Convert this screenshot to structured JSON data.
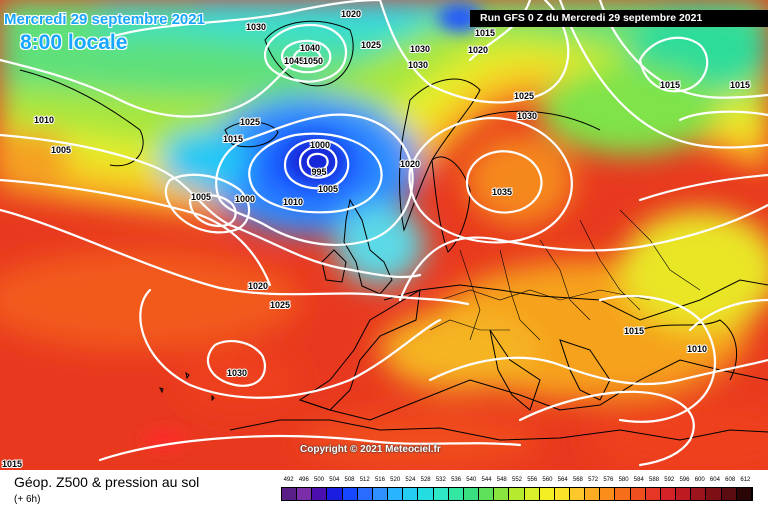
{
  "header": {
    "date": "Mercredi 29 septembre 2021",
    "time": "8:00 locale",
    "run": "Run GFS 0 Z du Mercredi 29 septembre 2021"
  },
  "copyright": "Copyright © 2021 Meteociel.fr",
  "legend": {
    "title": "Géop. Z500 & pression au sol",
    "subtitle": "(+ 6h)",
    "scale_values": [
      "492",
      "496",
      "500",
      "504",
      "508",
      "512",
      "516",
      "520",
      "524",
      "528",
      "532",
      "536",
      "540",
      "544",
      "548",
      "552",
      "556",
      "560",
      "564",
      "568",
      "572",
      "576",
      "580",
      "584",
      "588",
      "592",
      "596",
      "600",
      "604",
      "608",
      "612"
    ],
    "scale_colors": [
      "#5a1f86",
      "#7a2ea8",
      "#4b0faf",
      "#1a1ee0",
      "#1747ff",
      "#2a6cff",
      "#2f90ff",
      "#28b4ff",
      "#24cdf2",
      "#23dde0",
      "#2ee8c6",
      "#33e7a3",
      "#3adf82",
      "#5fe05a",
      "#8ae43f",
      "#b5ea2f",
      "#d8ef29",
      "#f4ee25",
      "#fde22a",
      "#fec72a",
      "#fdac22",
      "#fb8d1b",
      "#f66d1a",
      "#ef4e1f",
      "#e63726",
      "#d52227",
      "#bd1a21",
      "#9d151c",
      "#7e1015",
      "#5a0c10",
      "#2a0505"
    ]
  },
  "isobar_labels": [
    "1020",
    "1025",
    "1030",
    "1015",
    "1020",
    "1030",
    "1040",
    "1045",
    "1050",
    "1025",
    "1010",
    "1005",
    "1015",
    "1000",
    "995",
    "1005",
    "1010",
    "1005",
    "1000",
    "1020",
    "1030",
    "1035",
    "1025",
    "1015",
    "1015",
    "1030",
    "1010",
    "1015",
    "1020",
    "1025",
    "1030",
    "1015"
  ]
}
